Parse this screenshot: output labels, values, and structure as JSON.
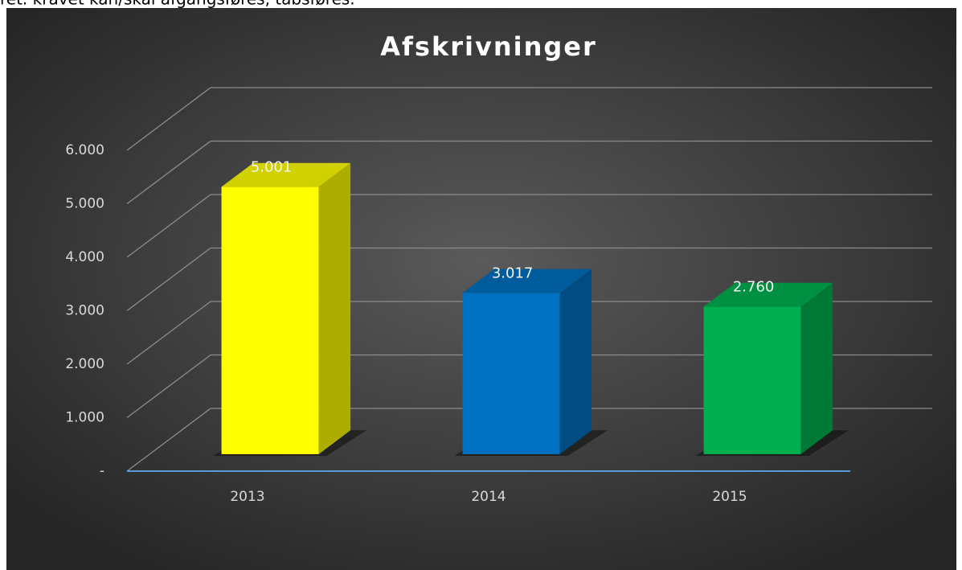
{
  "page_text": "ret. kravet kan/skal afgangsføres, tabsføres.",
  "chart_data": {
    "type": "bar3d",
    "title": "Afskrivninger",
    "categories": [
      "2013",
      "2014",
      "2015"
    ],
    "values": [
      5001,
      3017,
      2760
    ],
    "value_labels": [
      "5.001",
      "3.017",
      "2.760"
    ],
    "colors": [
      "#ffff00",
      "#0070c0",
      "#00b050"
    ],
    "ylim": [
      0,
      6000
    ],
    "yticks": [
      {
        "value": 0,
        "label": "-"
      },
      {
        "value": 1000,
        "label": "1.000"
      },
      {
        "value": 2000,
        "label": "2.000"
      },
      {
        "value": 3000,
        "label": "3.000"
      },
      {
        "value": 4000,
        "label": "4.000"
      },
      {
        "value": 5000,
        "label": "5.000"
      },
      {
        "value": 6000,
        "label": "6.000"
      }
    ],
    "grid": true
  }
}
